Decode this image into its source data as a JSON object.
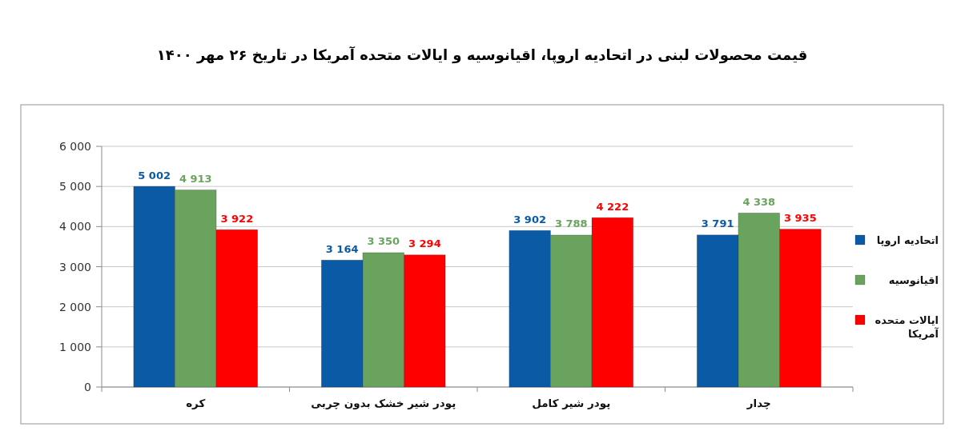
{
  "chart_data": {
    "type": "bar",
    "title": "قیمت محصولات لبنی در اتحادیه اروپا، اقیانوسیه و ایالات متحده آمریکا در تاریخ ۲۶ مهر ۱۴۰۰",
    "categories": [
      "کره",
      "پودر شیر خشک بدون چربی",
      "پودر شیر کامل",
      "چدار"
    ],
    "series": [
      {
        "name": "اتحادیه اروپا",
        "color": "#0b5aa5",
        "values": [
          5002,
          3164,
          3902,
          3791
        ],
        "value_labels": [
          "5 002",
          "3 164",
          "3 902",
          "3 791"
        ]
      },
      {
        "name": "اقیانوسیه",
        "color": "#6aa35e",
        "values": [
          4913,
          3350,
          3788,
          4338
        ],
        "value_labels": [
          "4 913",
          "3 350",
          "3 788",
          "4 338"
        ]
      },
      {
        "name": "ایالات متحده آمریکا",
        "color": "#ff0000",
        "values": [
          3922,
          3294,
          4222,
          3935
        ],
        "value_labels": [
          "3 922",
          "3 294",
          "4 222",
          "3 935"
        ]
      }
    ],
    "ylim": [
      0,
      6000
    ],
    "yticks": [
      0,
      {
        "value": 1000,
        "label": "1 000"
      },
      {
        "value": 2000,
        "label": "2 000"
      },
      {
        "value": 3000,
        "label": "3 000"
      },
      {
        "value": 4000,
        "label": "4 000"
      },
      {
        "value": 5000,
        "label": "5 000"
      },
      {
        "value": 6000,
        "label": "6 000"
      }
    ],
    "grid": "y",
    "legend": "right"
  }
}
